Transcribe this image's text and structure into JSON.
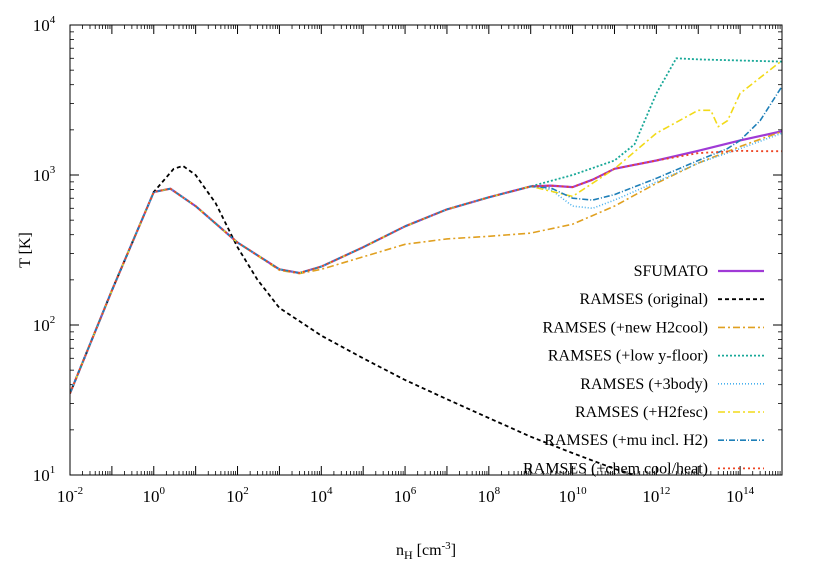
{
  "chart_data": {
    "type": "line",
    "xscale": "log",
    "yscale": "log",
    "xlabel": {
      "base": "n",
      "sub": "H",
      "unit": " [cm",
      "unit_sup": "-3",
      "unit_close": "]"
    },
    "ylabel": "T [K]",
    "xlim": [
      0.01,
      1000000000000000.0
    ],
    "ylim": [
      10,
      10000
    ],
    "legend_position": "right",
    "x_ticks": [
      {
        "value": 0.01,
        "base": "10",
        "exp": "-2"
      },
      {
        "value": 1,
        "base": "10",
        "exp": "0"
      },
      {
        "value": 100,
        "base": "10",
        "exp": "2"
      },
      {
        "value": 10000,
        "base": "10",
        "exp": "4"
      },
      {
        "value": 1000000.0,
        "base": "10",
        "exp": "6"
      },
      {
        "value": 100000000.0,
        "base": "10",
        "exp": "8"
      },
      {
        "value": 10000000000.0,
        "base": "10",
        "exp": "10"
      },
      {
        "value": 1000000000000.0,
        "base": "10",
        "exp": "12"
      },
      {
        "value": 100000000000000.0,
        "base": "10",
        "exp": "14"
      }
    ],
    "y_ticks": [
      {
        "value": 10,
        "base": "10",
        "exp": "1"
      },
      {
        "value": 100,
        "base": "10",
        "exp": "2"
      },
      {
        "value": 1000,
        "base": "10",
        "exp": "3"
      },
      {
        "value": 10000,
        "base": "10",
        "exp": "4"
      }
    ],
    "series": [
      {
        "name": "SFUMATO",
        "color": "#a03ad6",
        "dash": "",
        "width": 2.2,
        "x": [
          0.01,
          0.1,
          1,
          2.5,
          10,
          100,
          1000,
          3000,
          10000,
          100000.0,
          1000000.0,
          10000000.0,
          100000000.0,
          1000000000.0,
          3000000000.0,
          10000000000.0,
          30000000000.0,
          100000000000.0,
          1000000000000.0,
          10000000000000.0,
          100000000000000.0,
          1000000000000000.0
        ],
        "y": [
          35,
          170,
          770,
          810,
          620,
          355,
          235,
          222,
          245,
          330,
          455,
          590,
          710,
          840,
          850,
          830,
          930,
          1100,
          1250,
          1450,
          1700,
          1960
        ]
      },
      {
        "name": "RAMSES (original)",
        "color": "#000000",
        "dash": "4,3",
        "width": 1.8,
        "x": [
          0.01,
          0.1,
          1,
          3,
          5,
          10,
          30,
          100,
          300,
          1000,
          10000.0,
          100000.0,
          1000000.0,
          10000000.0,
          100000000.0,
          1000000000.0,
          10000000000.0,
          100000000000.0,
          300000000000.0
        ],
        "y": [
          35,
          170,
          770,
          1100,
          1150,
          1000,
          650,
          330,
          200,
          130,
          85,
          60,
          43,
          32,
          24,
          18,
          14,
          11,
          10
        ]
      },
      {
        "name": "RAMSES (+new H2cool)",
        "color": "#e0a020",
        "dash": "7,3,2,3",
        "width": 1.6,
        "x": [
          0.01,
          0.1,
          1,
          2.5,
          10,
          100,
          1000,
          3000,
          10000,
          100000.0,
          1000000.0,
          10000000.0,
          100000000.0,
          1000000000.0,
          10000000000.0,
          100000000000.0,
          1000000000000.0,
          10000000000000.0,
          100000000000000.0,
          1000000000000000.0
        ],
        "y": [
          35,
          170,
          770,
          810,
          620,
          355,
          232,
          220,
          235,
          285,
          345,
          375,
          390,
          410,
          470,
          620,
          880,
          1200,
          1550,
          1950
        ]
      },
      {
        "name": "RAMSES (+low y-floor)",
        "color": "#18a898",
        "dash": "2,2",
        "width": 1.8,
        "x": [
          0.01,
          0.1,
          1,
          2.5,
          10,
          100,
          1000,
          3000,
          10000,
          100000.0,
          1000000.0,
          10000000.0,
          100000000.0,
          1000000000.0,
          10000000000.0,
          100000000000.0,
          300000000000.0,
          1000000000000.0,
          3000000000000.0,
          10000000000000.0,
          100000000000000.0,
          1000000000000000.0
        ],
        "y": [
          35,
          170,
          770,
          810,
          620,
          355,
          235,
          222,
          245,
          330,
          455,
          590,
          710,
          840,
          1000,
          1250,
          1600,
          3500,
          6000,
          5900,
          5800,
          5700
        ]
      },
      {
        "name": "RAMSES (+3body)",
        "color": "#48b0ee",
        "dash": "1,2",
        "width": 1.6,
        "x": [
          0.01,
          0.1,
          1,
          2.5,
          10,
          100,
          1000,
          3000,
          10000,
          100000.0,
          1000000.0,
          10000000.0,
          100000000.0,
          1000000000.0,
          3000000000.0,
          10000000000.0,
          30000000000.0,
          100000000000.0,
          1000000000000.0,
          10000000000000.0,
          100000000000000.0,
          1000000000000000.0
        ],
        "y": [
          35,
          170,
          770,
          810,
          620,
          355,
          235,
          222,
          245,
          330,
          455,
          590,
          710,
          840,
          800,
          620,
          600,
          680,
          900,
          1200,
          1500,
          1900
        ]
      },
      {
        "name": "RAMSES (+H2fesc)",
        "color": "#f2da18",
        "dash": "7,3,2,3",
        "width": 1.6,
        "x": [
          0.01,
          0.1,
          1,
          2.5,
          10,
          100,
          1000,
          3000,
          10000,
          100000.0,
          1000000.0,
          10000000.0,
          100000000.0,
          1000000000.0,
          10000000000.0,
          100000000000.0,
          1000000000000.0,
          10000000000000.0,
          20000000000000.0,
          30000000000000.0,
          50000000000000.0,
          100000000000000.0,
          1000000000000000.0
        ],
        "y": [
          35,
          170,
          770,
          810,
          620,
          355,
          235,
          222,
          245,
          330,
          455,
          590,
          710,
          840,
          720,
          1100,
          1900,
          2700,
          2700,
          2100,
          2300,
          3500,
          5800
        ]
      },
      {
        "name": "RAMSES (+mu incl. H2)",
        "color": "#1e7fb8",
        "dash": "6,2,1,2",
        "width": 1.6,
        "x": [
          0.01,
          0.1,
          1,
          2.5,
          10,
          100,
          1000,
          3000,
          10000,
          100000.0,
          1000000.0,
          10000000.0,
          100000000.0,
          1000000000.0,
          3000000000.0,
          10000000000.0,
          30000000000.0,
          100000000000.0,
          1000000000000.0,
          10000000000000.0,
          50000000000000.0,
          100000000000000.0,
          300000000000000.0,
          1000000000000000.0
        ],
        "y": [
          35,
          170,
          770,
          810,
          620,
          355,
          235,
          222,
          245,
          330,
          455,
          590,
          710,
          840,
          820,
          700,
          680,
          740,
          950,
          1250,
          1500,
          1700,
          2300,
          3900
        ]
      },
      {
        "name": "RAMSES (+chem cool/heat)",
        "color": "#ee4422",
        "dash": "2,3",
        "width": 1.8,
        "x": [
          0.01,
          0.1,
          1,
          2.5,
          10,
          100,
          1000,
          3000,
          10000,
          100000.0,
          1000000.0,
          10000000.0,
          100000000.0,
          1000000000.0,
          3000000000.0,
          10000000000.0,
          30000000000.0,
          100000000000.0,
          1000000000000.0,
          10000000000000.0,
          100000000000000.0,
          300000000000000.0,
          1000000000000000.0
        ],
        "y": [
          35,
          170,
          770,
          810,
          620,
          355,
          235,
          222,
          245,
          330,
          455,
          590,
          710,
          840,
          850,
          830,
          930,
          1100,
          1250,
          1400,
          1450,
          1440,
          1440
        ]
      }
    ]
  }
}
